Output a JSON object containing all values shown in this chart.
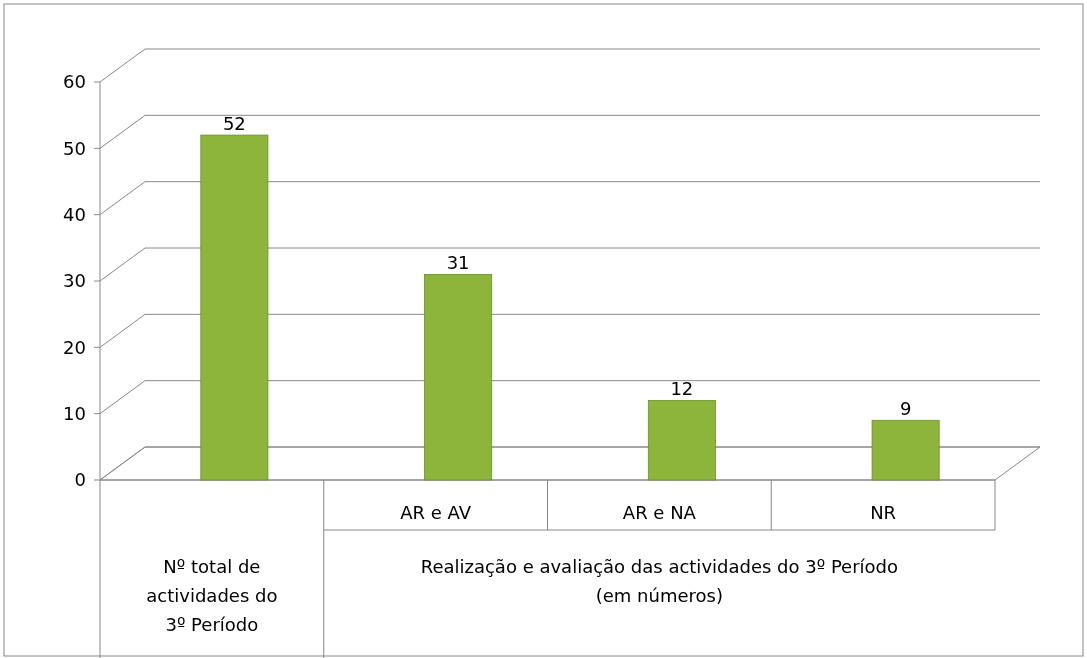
{
  "chart_data": {
    "type": "bar",
    "categories": [
      null,
      "AR e AV",
      "AR e NA",
      "NR"
    ],
    "values": [
      52,
      31,
      12,
      9
    ],
    "color": "#8db53c",
    "ylim": [
      0,
      60
    ],
    "yticks": [
      0,
      10,
      20,
      30,
      40,
      50,
      60
    ],
    "grid": "y",
    "data_labels": true,
    "annotations": [
      "Nº total de actividades do 3º Período",
      "Realização e avaliação das actividades do 3º Período (em números)"
    ]
  }
}
